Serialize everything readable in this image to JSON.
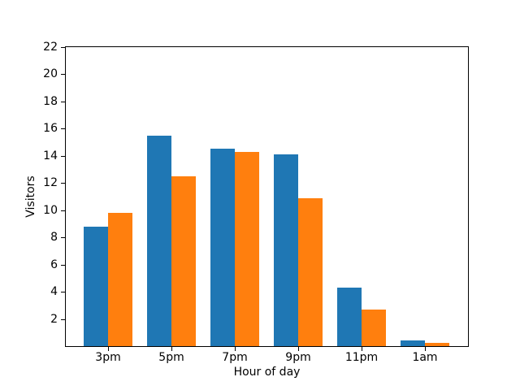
{
  "window": {
    "background": "#ffffff"
  },
  "chart_data": {
    "type": "bar",
    "title": "",
    "xlabel": "Hour of day",
    "ylabel": "Visitors",
    "categories": [
      "3pm",
      "5pm",
      "7pm",
      "9pm",
      "11pm",
      "1am"
    ],
    "series": [
      {
        "name": "blue",
        "color": "#1f77b4",
        "values": [
          8.8,
          15.5,
          14.5,
          14.1,
          4.3,
          0.4
        ]
      },
      {
        "name": "orange",
        "color": "#ff7f0e",
        "values": [
          9.8,
          12.5,
          14.3,
          10.9,
          2.7,
          0.25
        ]
      }
    ],
    "ylim": [
      0,
      22
    ],
    "yticks": [
      2,
      4,
      6,
      8,
      10,
      12,
      14,
      16,
      18,
      20,
      22
    ],
    "grid": false,
    "legend_position": "none",
    "axis_color": "#000000",
    "text_color": "#000000"
  }
}
